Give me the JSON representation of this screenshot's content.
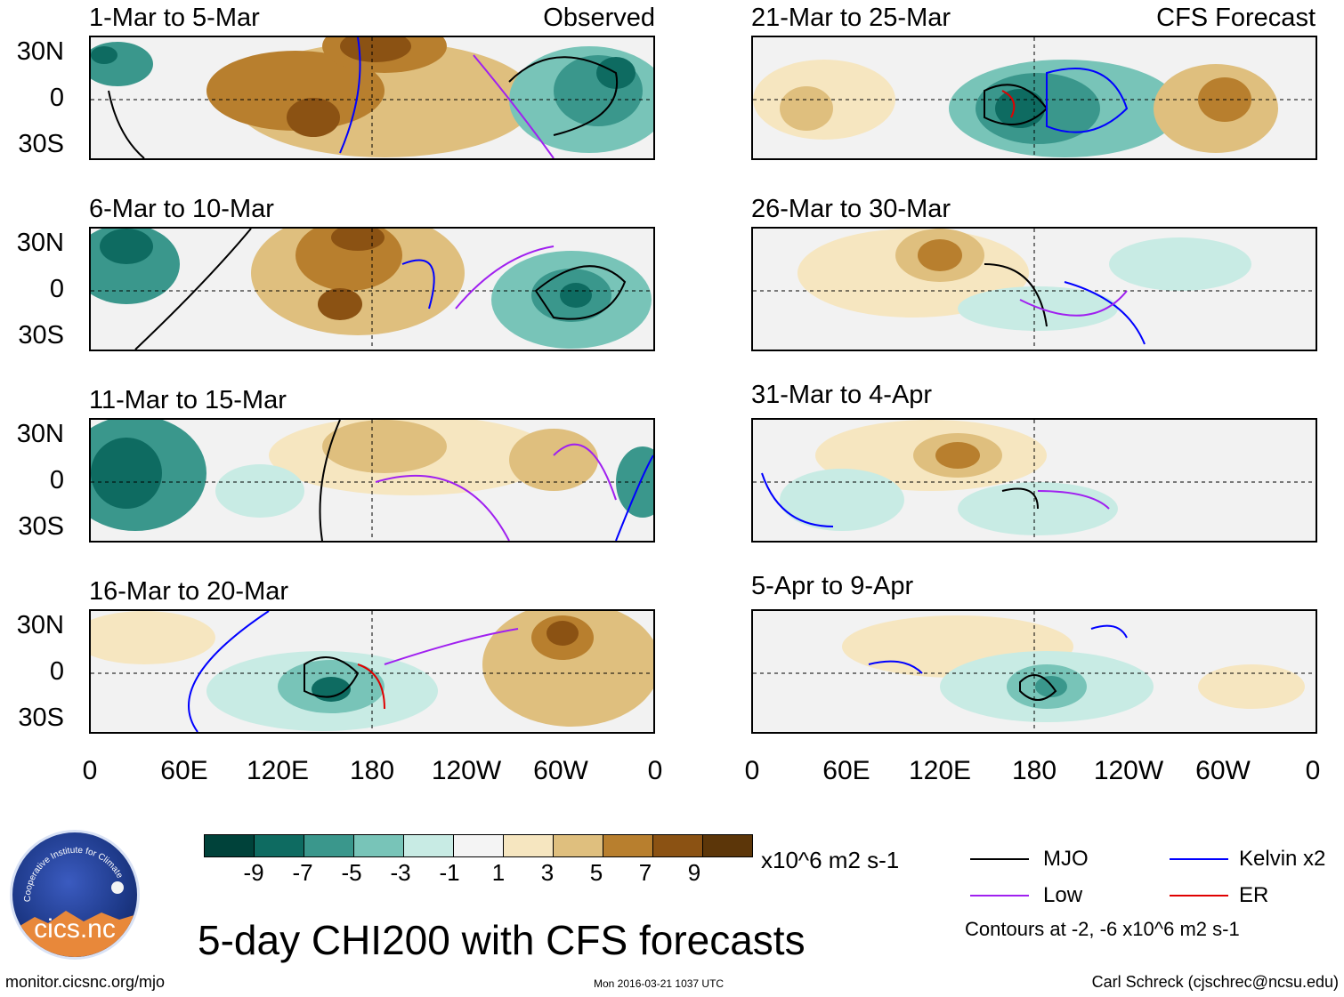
{
  "page_title": "5-day CHI200 with CFS forecasts",
  "left_header_tag": "Observed",
  "right_header_tag": "CFS Forecast",
  "panels_left": [
    {
      "title": "1-Mar to 5-Mar"
    },
    {
      "title": "6-Mar to 10-Mar"
    },
    {
      "title": "11-Mar to 15-Mar"
    },
    {
      "title": "16-Mar to 20-Mar"
    }
  ],
  "panels_right": [
    {
      "title": "21-Mar to 25-Mar"
    },
    {
      "title": "26-Mar to 30-Mar"
    },
    {
      "title": "31-Mar to 4-Apr"
    },
    {
      "title": "5-Apr to 9-Apr"
    }
  ],
  "y_axis_labels": [
    "30N",
    "0",
    "30S"
  ],
  "x_axis_labels": [
    "0",
    "60E",
    "120E",
    "180",
    "120W",
    "60W",
    "0"
  ],
  "colorbar": {
    "tick_labels": [
      "-9",
      "-7",
      "-5",
      "-3",
      "-1",
      "1",
      "3",
      "5",
      "7",
      "9"
    ],
    "units": "x10^6 m2 s-1",
    "colors": [
      "#00423a",
      "#0e6b61",
      "#3a978c",
      "#78c4b8",
      "#c8ebe4",
      "#f4f4f4",
      "#f6e6c0",
      "#dfbf7e",
      "#b87f2e",
      "#8b5213",
      "#5c3609"
    ]
  },
  "legend": {
    "items": [
      {
        "label": "MJO",
        "color": "#000000"
      },
      {
        "label": "Kelvin x2",
        "color": "#0000ff"
      },
      {
        "label": "Low",
        "color": "#a020f0"
      },
      {
        "label": "ER",
        "color": "#e00000"
      }
    ],
    "contours_note": "Contours at -2, -6 x10^6 m2 s-1"
  },
  "logo": {
    "text": "cics.nc",
    "ring_text": "Cooperative Institute for Climate and Satellites"
  },
  "footer": {
    "url": "monitor.cicsnc.org/mjo",
    "timestamp": "Mon 2016-03-21 1037 UTC",
    "credit": "Carl Schreck (cjschrec@ncsu.edu)"
  }
}
